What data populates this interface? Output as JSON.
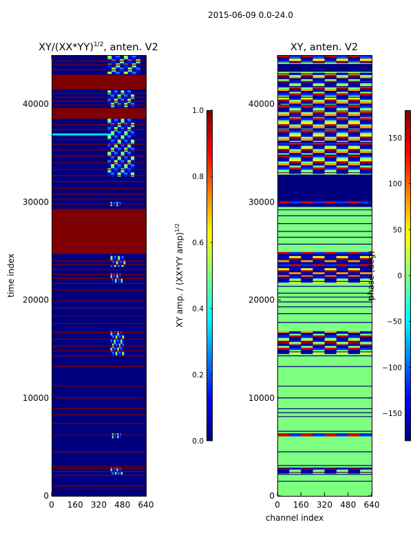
{
  "suptitle": "2015-06-09 0.0-24.0",
  "colormap": [
    "#00007f",
    "#0000ff",
    "#007fff",
    "#00ffff",
    "#7fff7f",
    "#ffff00",
    "#ff7f00",
    "#ff0000",
    "#7f0000"
  ],
  "chart_data": [
    {
      "type": "heatmap",
      "id": "amplitude",
      "title_base": "XY/(XX*YY)",
      "title_exp": "1/2",
      "title_suffix": ", anten. V2",
      "xlabel": "",
      "ylabel": "time index",
      "xlim": [
        0,
        640
      ],
      "ylim": [
        0,
        45000
      ],
      "xticks": [
        0,
        160,
        320,
        480,
        640
      ],
      "yticks": [
        0,
        10000,
        20000,
        30000,
        40000
      ],
      "colorbar": {
        "label_base": "XY amp. / (XX*YY amp)",
        "label_exp": "1/2",
        "range": [
          0.0,
          1.0
        ],
        "ticks": [
          0.0,
          0.2,
          0.4,
          0.6,
          0.8,
          1.0
        ],
        "tick_labels": [
          "0.0",
          "0.2",
          "0.4",
          "0.6",
          "0.8",
          "1.0"
        ]
      },
      "background_value": 0.0,
      "bands": [
        {
          "t0": 24700,
          "t1": 29300,
          "value": 1.0
        },
        {
          "t0": 38500,
          "t1": 39600,
          "value": 1.0
        },
        {
          "t0": 41500,
          "t1": 43000,
          "value": 1.0
        },
        {
          "t0": 36800,
          "t1": 37000,
          "value": 0.35,
          "c0": 0,
          "c1": 420
        }
      ],
      "lines": [
        1000,
        2100,
        2500,
        2800,
        3000,
        4500,
        6200,
        7400,
        8300,
        8900,
        10000,
        11200,
        13200,
        14300,
        14800,
        15300,
        16000,
        16700,
        17600,
        18400,
        19200,
        19900,
        21000,
        21700,
        22200,
        22600,
        23100,
        23600,
        24000,
        29800,
        30300,
        30800,
        31400,
        32100,
        32700,
        33300,
        34000,
        34700,
        35300,
        35900,
        36400,
        37400,
        37900,
        39900,
        40300,
        40700,
        41100,
        43500,
        44000,
        44400
      ],
      "line_value": 1.0,
      "patches": [
        {
          "t0": 2200,
          "t1": 2900,
          "c0": 400,
          "c1": 480
        },
        {
          "t0": 5900,
          "t1": 6400,
          "c0": 410,
          "c1": 480
        },
        {
          "t0": 14300,
          "t1": 16800,
          "c0": 400,
          "c1": 490
        },
        {
          "t0": 21800,
          "t1": 22700,
          "c0": 400,
          "c1": 480
        },
        {
          "t0": 23400,
          "t1": 24500,
          "c0": 400,
          "c1": 500
        },
        {
          "t0": 29600,
          "t1": 30000,
          "c0": 400,
          "c1": 480
        },
        {
          "t0": 32600,
          "t1": 38500,
          "c0": 380,
          "c1": 560
        },
        {
          "t0": 39700,
          "t1": 41400,
          "c0": 380,
          "c1": 560
        },
        {
          "t0": 43100,
          "t1": 45000,
          "c0": 380,
          "c1": 600
        }
      ],
      "patch_values": [
        0.15,
        0.55,
        0.35,
        0.05,
        0.45,
        0.25,
        0.6,
        0.1
      ]
    },
    {
      "type": "heatmap",
      "id": "phase",
      "title_base": "XY, anten. V2",
      "title_exp": "",
      "title_suffix": "",
      "xlabel": "channel index",
      "ylabel": "",
      "xlim": [
        0,
        640
      ],
      "ylim": [
        0,
        45000
      ],
      "xticks": [
        0,
        160,
        320,
        480,
        640
      ],
      "yticks": [
        0,
        10000,
        20000,
        30000,
        40000
      ],
      "colorbar": {
        "label_base": "phase (deg)",
        "label_exp": "",
        "range": [
          -180,
          180
        ],
        "ticks": [
          -150,
          -100,
          -50,
          0,
          50,
          100,
          150
        ],
        "tick_labels": [
          "−150",
          "−100",
          "−50",
          "0",
          "50",
          "100",
          "150"
        ]
      },
      "background_value": 0.0,
      "bands": [
        {
          "t0": 22500,
          "t1": 24800,
          "value": -180
        },
        {
          "t0": 29500,
          "t1": 32800,
          "value": -180
        },
        {
          "t0": 43300,
          "t1": 44100,
          "value": -180
        }
      ],
      "lines": [
        1500,
        2200,
        2400,
        2800,
        3100,
        4500,
        6600,
        8100,
        8500,
        8900,
        10000,
        11200,
        13200,
        14300,
        14700,
        15400,
        15800,
        16200,
        16600,
        17700,
        18600,
        19300,
        19800,
        20300,
        20700,
        21400,
        21900,
        22300,
        25700,
        26400,
        27000,
        27800,
        28600,
        29200,
        33000,
        34800,
        35800,
        36100,
        37400,
        38700,
        39300,
        39900,
        40700,
        41300,
        41800,
        42200,
        42600,
        43100,
        44300,
        44700
      ],
      "line_value": -180,
      "patches": [
        {
          "t0": 2300,
          "t1": 2900,
          "c0": 0,
          "c1": 640
        },
        {
          "t0": 6100,
          "t1": 6400,
          "c0": 0,
          "c1": 640
        },
        {
          "t0": 14500,
          "t1": 16800,
          "c0": 0,
          "c1": 640
        },
        {
          "t0": 21800,
          "t1": 24900,
          "c0": 0,
          "c1": 640
        },
        {
          "t0": 29600,
          "t1": 30100,
          "c0": 0,
          "c1": 640
        },
        {
          "t0": 32900,
          "t1": 43200,
          "c0": 0,
          "c1": 640
        },
        {
          "t0": 44200,
          "t1": 45000,
          "c0": 0,
          "c1": 640
        }
      ],
      "patch_values": [
        -170,
        150,
        120,
        -160,
        170,
        40,
        160,
        -120,
        -170,
        80,
        140,
        -150
      ]
    }
  ]
}
